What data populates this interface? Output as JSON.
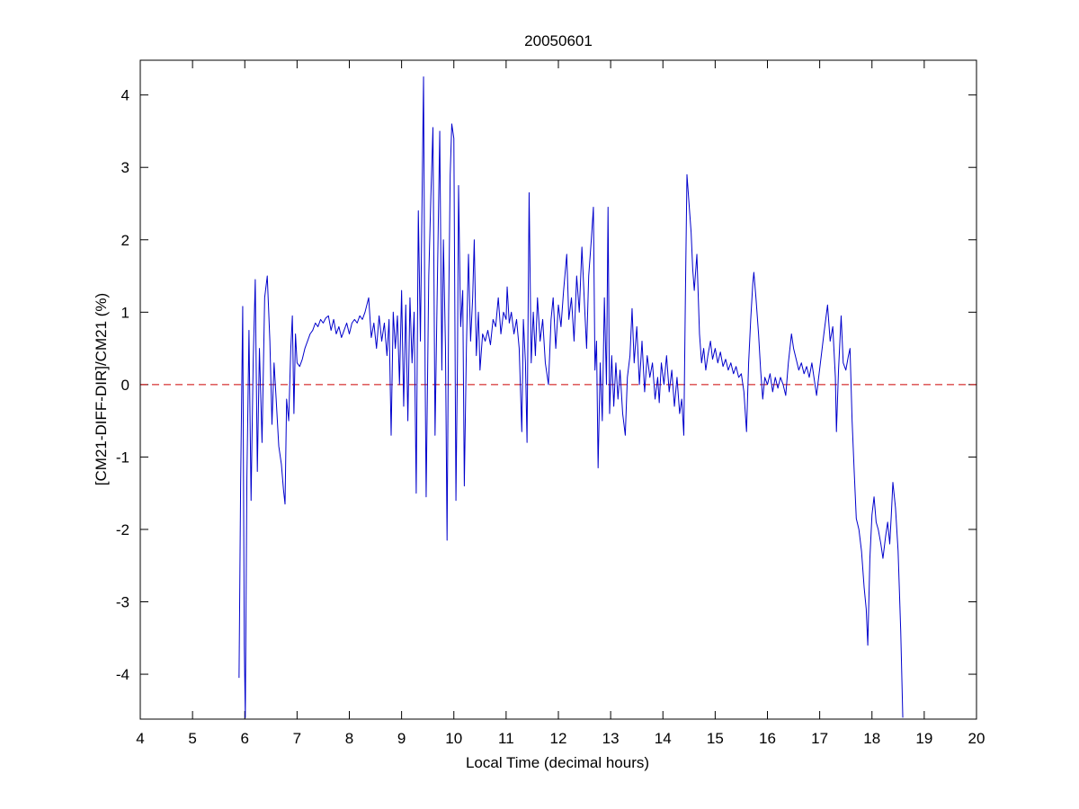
{
  "chart_data": {
    "type": "line",
    "title": "20050601",
    "x_label": "Local Time (decimal hours)",
    "y_label": "[CM21-DIFF-DIR]/CM21 (%)",
    "color": "#0000cc",
    "x": [
      5.89,
      5.92,
      5.96,
      5.99,
      6.01,
      6.04,
      6.08,
      6.12,
      6.16,
      6.2,
      6.24,
      6.28,
      6.33,
      6.38,
      6.43,
      6.48,
      6.52,
      6.56,
      6.6,
      6.65,
      6.7,
      6.74,
      6.77,
      6.8,
      6.84,
      6.88,
      6.91,
      6.94,
      6.97,
      7.0,
      7.05,
      7.1,
      7.15,
      7.2,
      7.25,
      7.3,
      7.35,
      7.4,
      7.45,
      7.5,
      7.55,
      7.6,
      7.65,
      7.7,
      7.75,
      7.8,
      7.85,
      7.9,
      7.95,
      8.0,
      8.05,
      8.1,
      8.15,
      8.2,
      8.25,
      8.3,
      8.37,
      8.42,
      8.47,
      8.52,
      8.57,
      8.62,
      8.67,
      8.72,
      8.76,
      8.8,
      8.84,
      8.88,
      8.92,
      8.96,
      9.0,
      9.04,
      9.08,
      9.12,
      9.16,
      9.2,
      9.24,
      9.28,
      9.32,
      9.36,
      9.39,
      9.42,
      9.45,
      9.47,
      9.52,
      9.56,
      9.6,
      9.64,
      9.68,
      9.73,
      9.77,
      9.8,
      9.84,
      9.87,
      9.9,
      9.93,
      9.96,
      10.0,
      10.04,
      10.07,
      10.09,
      10.13,
      10.17,
      10.2,
      10.24,
      10.28,
      10.32,
      10.36,
      10.39,
      10.43,
      10.47,
      10.5,
      10.55,
      10.6,
      10.65,
      10.7,
      10.75,
      10.8,
      10.85,
      10.9,
      10.95,
      11.0,
      11.02,
      11.06,
      11.1,
      11.15,
      11.2,
      11.25,
      11.3,
      11.33,
      11.37,
      11.4,
      11.44,
      11.48,
      11.52,
      11.56,
      11.6,
      11.65,
      11.7,
      11.75,
      11.81,
      11.86,
      11.9,
      11.95,
      12.0,
      12.05,
      12.1,
      12.16,
      12.2,
      12.25,
      12.3,
      12.35,
      12.4,
      12.45,
      12.5,
      12.54,
      12.58,
      12.63,
      12.67,
      12.7,
      12.73,
      12.76,
      12.8,
      12.84,
      12.88,
      12.92,
      12.95,
      12.98,
      13.02,
      13.06,
      13.1,
      13.14,
      13.18,
      13.23,
      13.28,
      13.32,
      13.37,
      13.41,
      13.45,
      13.5,
      13.55,
      13.6,
      13.65,
      13.7,
      13.75,
      13.8,
      13.85,
      13.9,
      13.93,
      13.97,
      14.02,
      14.07,
      14.12,
      14.17,
      14.22,
      14.27,
      14.32,
      14.36,
      14.4,
      14.43,
      14.46,
      14.5,
      14.54,
      14.57,
      14.6,
      14.65,
      14.7,
      14.74,
      14.78,
      14.82,
      14.86,
      14.91,
      14.95,
      15.0,
      15.05,
      15.1,
      15.15,
      15.2,
      15.25,
      15.3,
      15.35,
      15.4,
      15.45,
      15.5,
      15.55,
      15.6,
      15.64,
      15.68,
      15.72,
      15.74,
      15.78,
      15.83,
      15.87,
      15.91,
      15.95,
      16.0,
      16.05,
      16.1,
      16.15,
      16.2,
      16.25,
      16.3,
      16.35,
      16.4,
      16.46,
      16.5,
      16.55,
      16.6,
      16.65,
      16.7,
      16.75,
      16.8,
      16.85,
      16.9,
      16.94,
      16.98,
      17.03,
      17.08,
      17.15,
      17.2,
      17.25,
      17.3,
      17.32,
      17.36,
      17.41,
      17.45,
      17.5,
      17.55,
      17.58,
      17.62,
      17.66,
      17.7,
      17.75,
      17.8,
      17.85,
      17.89,
      17.92,
      17.96,
      18.0,
      18.04,
      18.08,
      18.12,
      18.17,
      18.21,
      18.26,
      18.3,
      18.34,
      18.37,
      18.4,
      18.45,
      18.5,
      18.55,
      18.59
    ],
    "values": [
      -4.05,
      -1.4,
      1.08,
      -3.6,
      -4.6,
      -1.3,
      0.75,
      -1.6,
      0.3,
      1.45,
      -1.2,
      0.5,
      -0.8,
      1.2,
      1.5,
      0.6,
      -0.55,
      0.3,
      -0.2,
      -0.85,
      -1.1,
      -1.45,
      -1.65,
      -0.2,
      -0.5,
      0.5,
      0.95,
      -0.4,
      0.7,
      0.3,
      0.25,
      0.35,
      0.5,
      0.6,
      0.7,
      0.75,
      0.85,
      0.8,
      0.9,
      0.85,
      0.92,
      0.95,
      0.75,
      0.9,
      0.7,
      0.8,
      0.65,
      0.75,
      0.85,
      0.7,
      0.85,
      0.9,
      0.85,
      0.95,
      0.9,
      1.0,
      1.2,
      0.65,
      0.85,
      0.5,
      0.95,
      0.6,
      0.85,
      0.4,
      0.9,
      -0.7,
      1.0,
      0.5,
      0.95,
      0.0,
      1.3,
      -0.3,
      1.1,
      -0.5,
      1.2,
      0.3,
      1.0,
      -1.5,
      2.4,
      0.6,
      2.45,
      4.25,
      0.2,
      -1.55,
      1.5,
      2.6,
      3.55,
      -0.7,
      1.2,
      3.5,
      0.2,
      2.0,
      0.5,
      -2.15,
      1.0,
      2.9,
      3.6,
      3.4,
      -1.6,
      0.4,
      2.75,
      0.8,
      1.3,
      -1.4,
      0.5,
      1.8,
      0.6,
      1.2,
      2.0,
      0.4,
      1.0,
      0.2,
      0.7,
      0.6,
      0.75,
      0.55,
      0.9,
      0.8,
      1.2,
      0.7,
      1.0,
      0.9,
      1.35,
      0.85,
      1.0,
      0.7,
      0.9,
      0.5,
      -0.65,
      0.9,
      0.3,
      -0.8,
      2.65,
      0.3,
      1.0,
      0.4,
      1.2,
      0.6,
      0.9,
      0.3,
      0.0,
      0.9,
      1.2,
      0.5,
      1.1,
      0.8,
      1.3,
      1.8,
      0.9,
      1.2,
      0.6,
      1.5,
      1.0,
      1.9,
      1.1,
      0.5,
      1.5,
      2.0,
      2.45,
      0.2,
      0.6,
      -1.15,
      0.3,
      -0.5,
      1.2,
      0.0,
      2.45,
      -0.4,
      0.4,
      -0.3,
      0.3,
      -0.2,
      0.2,
      -0.4,
      -0.7,
      0.1,
      0.4,
      1.05,
      0.3,
      0.8,
      0.0,
      0.6,
      -0.1,
      0.4,
      0.1,
      0.3,
      -0.2,
      0.1,
      -0.25,
      0.3,
      0.0,
      0.4,
      -0.1,
      0.2,
      -0.3,
      0.1,
      -0.4,
      -0.2,
      -0.7,
      1.2,
      2.9,
      2.5,
      2.1,
      1.6,
      1.3,
      1.8,
      0.7,
      0.3,
      0.5,
      0.2,
      0.4,
      0.6,
      0.35,
      0.5,
      0.3,
      0.45,
      0.25,
      0.35,
      0.2,
      0.3,
      0.15,
      0.25,
      0.1,
      0.15,
      -0.1,
      -0.65,
      0.3,
      0.9,
      1.4,
      1.55,
      1.2,
      0.7,
      0.2,
      -0.2,
      0.1,
      0.0,
      0.15,
      -0.1,
      0.1,
      -0.05,
      0.1,
      0.0,
      -0.15,
      0.3,
      0.7,
      0.5,
      0.35,
      0.2,
      0.3,
      0.15,
      0.25,
      0.1,
      0.3,
      0.05,
      -0.15,
      0.1,
      0.4,
      0.7,
      1.1,
      0.6,
      0.8,
      0.1,
      -0.65,
      0.2,
      0.95,
      0.3,
      0.2,
      0.4,
      0.5,
      -0.5,
      -1.2,
      -1.85,
      -2.0,
      -2.3,
      -2.8,
      -3.1,
      -3.6,
      -2.4,
      -1.8,
      -1.55,
      -1.9,
      -2.0,
      -2.2,
      -2.4,
      -2.1,
      -1.9,
      -2.2,
      -1.8,
      -1.35,
      -1.7,
      -2.3,
      -3.4,
      -4.6
    ],
    "reference_line": {
      "value": 0,
      "color": "#cc0000",
      "dashed": true
    },
    "xlim": [
      4,
      20
    ],
    "xticks": [
      4,
      5,
      6,
      7,
      8,
      9,
      10,
      11,
      12,
      13,
      14,
      15,
      16,
      17,
      18,
      19,
      20
    ],
    "ylim": [
      -4.62,
      4.48
    ],
    "yticks": [
      -4,
      -3,
      -2,
      -1,
      0,
      1,
      2,
      3,
      4
    ],
    "grid": false
  }
}
